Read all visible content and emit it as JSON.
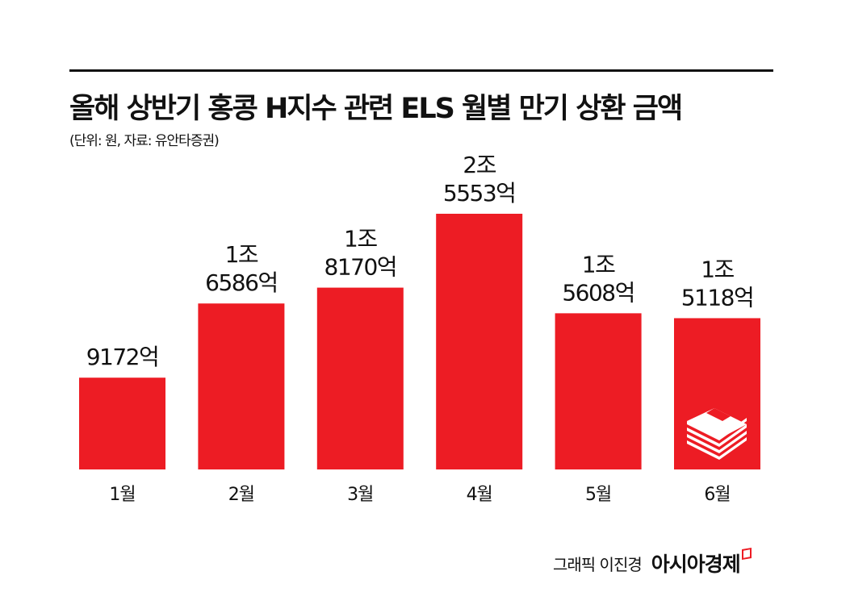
{
  "title": "올해 상반기 홍콩 H지수 관련 ELS 월별 만기 상환 금액",
  "subtitle": "(단위: 원, 자료: 유안타증권)",
  "credit": "그래픽 이진경",
  "logo_text": "아시아경제",
  "colors": {
    "bar": "#ed1c24",
    "text": "#111111"
  },
  "icons": {
    "last_bar": "money-stack-icon"
  },
  "chart_data": {
    "type": "bar",
    "title": "올해 상반기 홍콩 H지수 관련 ELS 월별 만기 상환 금액",
    "unit": "억원",
    "categories": [
      "1월",
      "2월",
      "3월",
      "4월",
      "5월",
      "6월"
    ],
    "values": [
      9172,
      16586,
      18170,
      25553,
      15608,
      15118
    ],
    "data_labels": [
      [
        "9172억"
      ],
      [
        "1조",
        "6586억"
      ],
      [
        "1조",
        "8170억"
      ],
      [
        "2조",
        "5553억"
      ],
      [
        "1조",
        "5608억"
      ],
      [
        "1조",
        "5118억"
      ]
    ],
    "grid": false,
    "legend": "none"
  }
}
